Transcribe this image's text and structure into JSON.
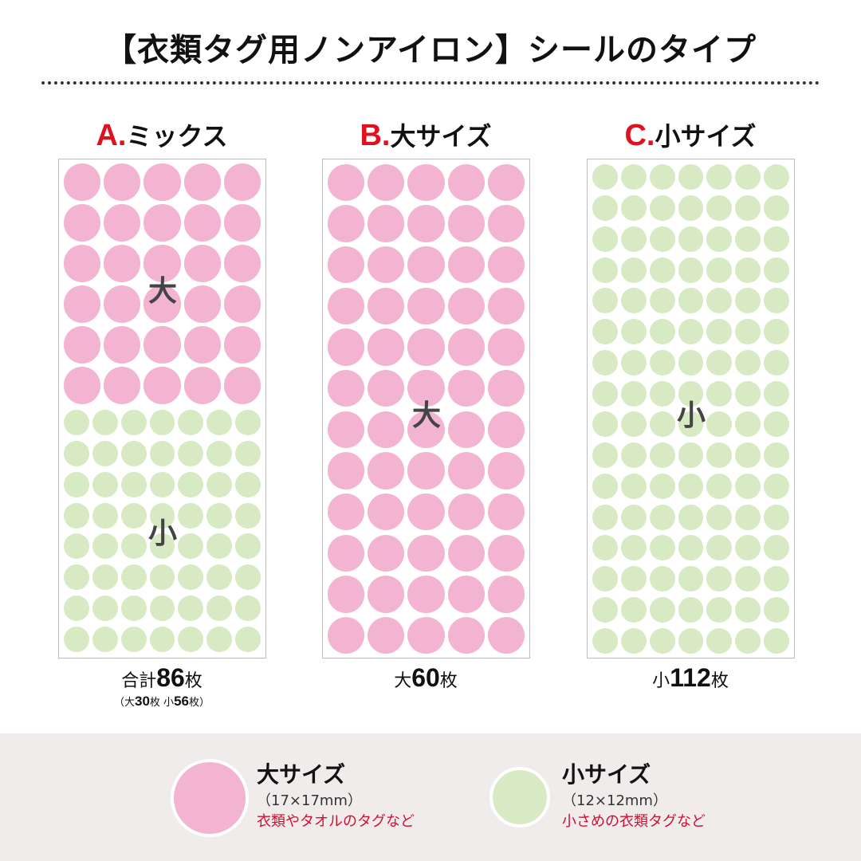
{
  "title": "【衣類タグ用ノンアイロン】シールのタイプ",
  "types": [
    {
      "letter": "A.",
      "name": "ミックス",
      "large_count": 30,
      "small_count": 56,
      "total_prefix": "合計",
      "total": "86",
      "unit": "枚",
      "breakdown": {
        "open": "（大",
        "large": "30",
        "mid": "枚 小",
        "small": "56",
        "close": "枚）"
      },
      "mark_large": "大",
      "mark_small": "小"
    },
    {
      "letter": "B.",
      "name": "大サイズ",
      "large_count": 60,
      "small_count": 0,
      "total_prefix": "大",
      "total": "60",
      "unit": "枚",
      "mark_large": "大"
    },
    {
      "letter": "C.",
      "name": "小サイズ",
      "large_count": 0,
      "small_count": 112,
      "total_prefix": "小",
      "total": "112",
      "unit": "枚",
      "mark_small": "小"
    }
  ],
  "legend": [
    {
      "name": "大サイズ",
      "size": "（17×17mm）",
      "use": "衣類やタオルのタグなど",
      "color": "#f2b4d1"
    },
    {
      "name": "小サイズ",
      "size": "（12×12mm）",
      "use": "小さめの衣類タグなど",
      "color": "#d7eac3"
    }
  ],
  "colors": {
    "large": "#f2b4d1",
    "small": "#d7eac3",
    "accent": "#e0101e",
    "band": "#efeceb"
  }
}
